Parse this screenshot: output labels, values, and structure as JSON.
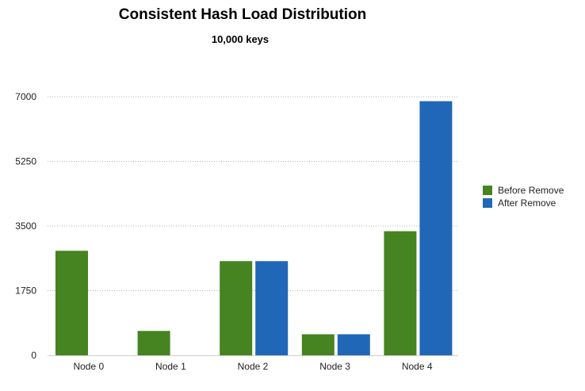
{
  "chart_data": {
    "type": "bar",
    "title": "Consistent Hash Load Distribution",
    "subtitle": "10,000 keys",
    "categories": [
      "Node 0",
      "Node 1",
      "Node 2",
      "Node 3",
      "Node 4"
    ],
    "series": [
      {
        "name": "Before Remove",
        "color": "#458420",
        "values": [
          2830,
          660,
          2550,
          570,
          3360
        ]
      },
      {
        "name": "After Remove",
        "color": "#2167b7",
        "values": [
          0,
          0,
          2550,
          570,
          6880
        ]
      }
    ],
    "xlabel": "",
    "ylabel": "",
    "ylim": [
      0,
      7000
    ],
    "yticks": [
      0,
      1750,
      3500,
      5250,
      7000
    ],
    "grid": true,
    "legend_position": "right"
  }
}
